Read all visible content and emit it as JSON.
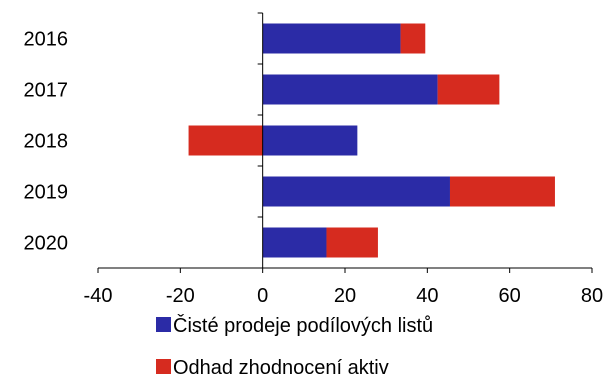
{
  "chart_data": {
    "type": "bar",
    "orientation": "horizontal",
    "stacked": true,
    "categories": [
      "2016",
      "2017",
      "2018",
      "2019",
      "2020"
    ],
    "series": [
      {
        "name": "Čisté prodeje podílových listů",
        "color": "#2b2ba6",
        "values": [
          33.5,
          42.5,
          23,
          45.5,
          15.5
        ]
      },
      {
        "name": "Odhad zhodnocení aktiv",
        "color": "#d62b1f",
        "values": [
          6,
          15,
          -18,
          25.5,
          12.5
        ]
      }
    ],
    "xlim": [
      -40,
      80
    ],
    "xticks": [
      -40,
      -20,
      0,
      20,
      40,
      60,
      80
    ],
    "xlabel": "",
    "ylabel": "",
    "title": "",
    "grid": false,
    "legend_position": "bottom"
  }
}
